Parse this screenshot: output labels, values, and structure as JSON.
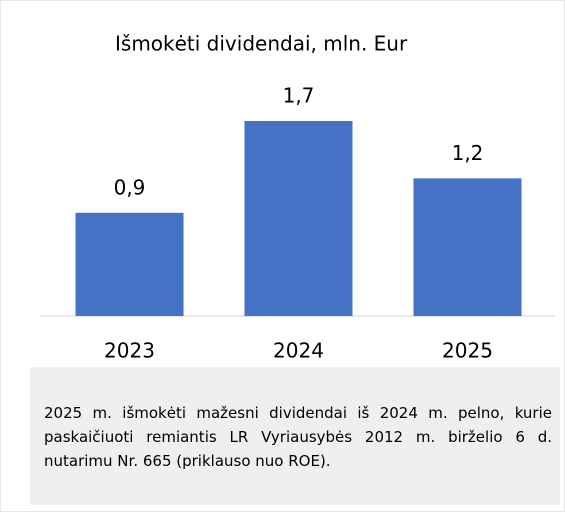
{
  "chart_data": {
    "type": "bar",
    "title": "Išmokėti dividendai, mln. Eur",
    "categories": [
      "2023",
      "2024",
      "2025"
    ],
    "values": [
      0.9,
      1.7,
      1.2
    ],
    "value_labels": [
      "0,9",
      "1,7",
      "1,2"
    ],
    "color": "#4472c4"
  },
  "note": "2025 m. išmokėti mažesni dividendai iš 2024 m. pelno, kurie paskaičiuoti remiantis LR Vyriausybės 2012 m. birželio 6 d. nutarimu Nr. 665 (priklauso nuo ROE)."
}
